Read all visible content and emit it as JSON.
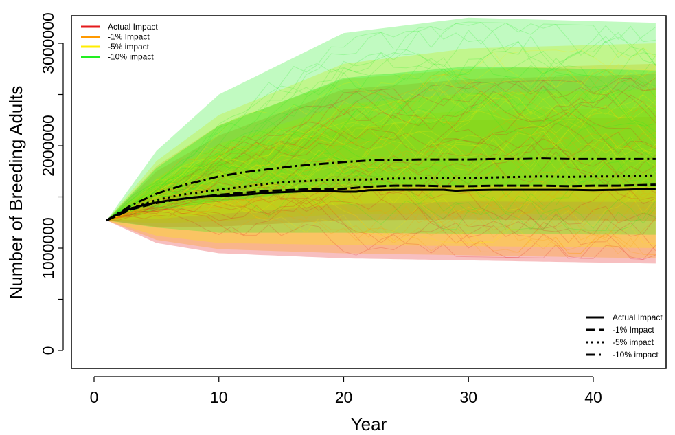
{
  "chart_data": {
    "type": "line",
    "xlabel": "Year",
    "ylabel": "Number of Breeding Adults",
    "xlim": [
      1,
      45
    ],
    "ylim": [
      0,
      3300000
    ],
    "x_ticks": [
      0,
      10,
      20,
      30,
      40
    ],
    "x_tick_labels": [
      "0",
      "10",
      "20",
      "30",
      "40"
    ],
    "y_ticks": [
      0,
      500000,
      1000000,
      1500000,
      2000000,
      2500000,
      3000000
    ],
    "y_tick_labels": [
      "0",
      "",
      "1000000",
      "",
      "2000000",
      "",
      "3000000"
    ],
    "grid": false,
    "start_value": 1270000,
    "simulation_legend": {
      "placement": "top-left",
      "entries": [
        {
          "label": "Actual Impact",
          "color": "#e41a1c"
        },
        {
          "label": "-1% Impact",
          "color": "#ff9900"
        },
        {
          "label": "-5% impact",
          "color": "#ffee00"
        },
        {
          "label": "-10% impact",
          "color": "#22ee22"
        }
      ]
    },
    "mean_legend": {
      "placement": "bottom-right",
      "entries": [
        {
          "label": "Actual Impact",
          "dash": "solid"
        },
        {
          "label": "-1% Impact",
          "dash": "dashed"
        },
        {
          "label": "-5% impact",
          "dash": "dotted"
        },
        {
          "label": "-10% impact",
          "dash": "dashdot"
        }
      ]
    },
    "simulation_envelopes": [
      {
        "name": "Actual Impact",
        "color": "#e41a1c",
        "upper": [
          [
            1,
            1270000
          ],
          [
            5,
            1750000
          ],
          [
            10,
            2100000
          ],
          [
            20,
            2550000
          ],
          [
            30,
            2650000
          ],
          [
            45,
            2700000
          ]
        ],
        "lower": [
          [
            1,
            1270000
          ],
          [
            5,
            1050000
          ],
          [
            10,
            950000
          ],
          [
            20,
            900000
          ],
          [
            30,
            880000
          ],
          [
            45,
            850000
          ]
        ]
      },
      {
        "name": "-1% Impact",
        "color": "#ff9900",
        "upper": [
          [
            1,
            1270000
          ],
          [
            5,
            1800000
          ],
          [
            10,
            2200000
          ],
          [
            20,
            2650000
          ],
          [
            30,
            2750000
          ],
          [
            45,
            2800000
          ]
        ],
        "lower": [
          [
            1,
            1270000
          ],
          [
            5,
            1080000
          ],
          [
            10,
            990000
          ],
          [
            20,
            950000
          ],
          [
            30,
            930000
          ],
          [
            45,
            900000
          ]
        ]
      },
      {
        "name": "-5% impact",
        "color": "#ffee00",
        "upper": [
          [
            1,
            1270000
          ],
          [
            5,
            1850000
          ],
          [
            10,
            2300000
          ],
          [
            20,
            2800000
          ],
          [
            30,
            2950000
          ],
          [
            45,
            3000000
          ]
        ],
        "lower": [
          [
            1,
            1270000
          ],
          [
            5,
            1120000
          ],
          [
            10,
            1050000
          ],
          [
            20,
            1030000
          ],
          [
            30,
            1020000
          ],
          [
            45,
            1000000
          ]
        ]
      },
      {
        "name": "-10% impact",
        "color": "#22ee22",
        "upper": [
          [
            1,
            1270000
          ],
          [
            5,
            1950000
          ],
          [
            10,
            2500000
          ],
          [
            20,
            3100000
          ],
          [
            30,
            3250000
          ],
          [
            45,
            3200000
          ]
        ],
        "lower": [
          [
            1,
            1270000
          ],
          [
            5,
            1200000
          ],
          [
            10,
            1150000
          ],
          [
            20,
            1150000
          ],
          [
            30,
            1140000
          ],
          [
            45,
            1130000
          ]
        ]
      }
    ],
    "series": [
      {
        "name": "Actual Impact",
        "dash": "solid",
        "x": [
          1,
          2,
          3,
          4,
          5,
          6,
          7,
          8,
          9,
          10,
          12,
          14,
          16,
          18,
          20,
          21,
          22,
          24,
          26,
          28,
          29,
          30,
          32,
          34,
          36,
          38,
          40,
          42,
          45
        ],
        "values": [
          1270000,
          1340000,
          1390000,
          1420000,
          1445000,
          1465000,
          1480000,
          1495000,
          1505000,
          1510000,
          1520000,
          1540000,
          1550000,
          1560000,
          1550000,
          1550000,
          1565000,
          1570000,
          1570000,
          1570000,
          1560000,
          1565000,
          1570000,
          1570000,
          1570000,
          1570000,
          1565000,
          1570000,
          1580000
        ]
      },
      {
        "name": "-1% Impact",
        "dash": "dashed",
        "x": [
          1,
          3,
          5,
          7,
          10,
          12,
          14,
          16,
          18,
          20,
          22,
          24,
          26,
          28,
          30,
          32,
          34,
          36,
          38,
          40,
          42,
          45
        ],
        "values": [
          1270000,
          1380000,
          1440000,
          1480000,
          1520000,
          1540000,
          1560000,
          1570000,
          1580000,
          1580000,
          1600000,
          1610000,
          1610000,
          1605000,
          1605000,
          1610000,
          1610000,
          1610000,
          1605000,
          1610000,
          1610000,
          1620000
        ]
      },
      {
        "name": "-5% impact",
        "dash": "dotted",
        "x": [
          1,
          3,
          5,
          7,
          10,
          12,
          14,
          16,
          18,
          20,
          22,
          24,
          26,
          28,
          30,
          32,
          34,
          36,
          38,
          40,
          42,
          45
        ],
        "values": [
          1270000,
          1390000,
          1470000,
          1520000,
          1570000,
          1600000,
          1630000,
          1650000,
          1660000,
          1670000,
          1670000,
          1680000,
          1680000,
          1685000,
          1685000,
          1690000,
          1695000,
          1700000,
          1695000,
          1700000,
          1700000,
          1710000
        ]
      },
      {
        "name": "-10% impact",
        "dash": "dashdot",
        "x": [
          1,
          3,
          5,
          7,
          10,
          12,
          14,
          16,
          18,
          20,
          22,
          24,
          26,
          28,
          30,
          32,
          34,
          36,
          38,
          40,
          42,
          45
        ],
        "values": [
          1270000,
          1420000,
          1530000,
          1610000,
          1700000,
          1740000,
          1770000,
          1800000,
          1820000,
          1840000,
          1855000,
          1860000,
          1865000,
          1865000,
          1865000,
          1870000,
          1870000,
          1875000,
          1870000,
          1870000,
          1870000,
          1870000
        ]
      }
    ]
  }
}
